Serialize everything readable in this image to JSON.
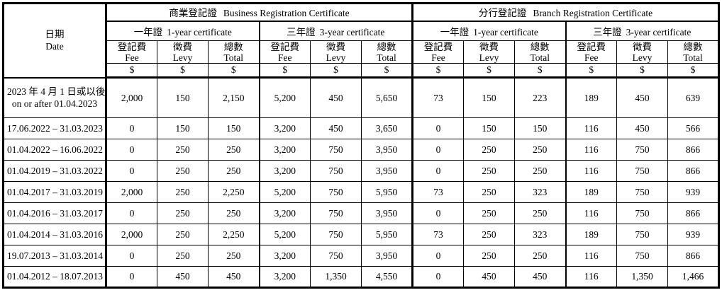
{
  "table": {
    "date_header": {
      "zh": "日期",
      "en": "Date"
    },
    "sections": [
      {
        "zh": "商業登記證",
        "en": "Business Registration Certificate"
      },
      {
        "zh": "分行登記證",
        "en": "Branch Registration Certificate"
      }
    ],
    "groups": [
      {
        "zh": "一年證",
        "en": "1-year certificate"
      },
      {
        "zh": "三年證",
        "en": "3-year certificate"
      }
    ],
    "columns": [
      {
        "zh": "登記費",
        "en": "Fee"
      },
      {
        "zh": "徵費",
        "en": "Levy"
      },
      {
        "zh": "總數",
        "en": "Total"
      }
    ],
    "currency": "$",
    "rows": [
      {
        "date_lines": [
          "2023 年 4 月 1 日或以後",
          "on or after 01.04.2023"
        ],
        "values": [
          "2,000",
          "150",
          "2,150",
          "5,200",
          "450",
          "5,650",
          "73",
          "150",
          "223",
          "189",
          "450",
          "639"
        ]
      },
      {
        "date_lines": [
          "17.06.2022 – 31.03.2023"
        ],
        "values": [
          "0",
          "150",
          "150",
          "3,200",
          "450",
          "3,650",
          "0",
          "150",
          "150",
          "116",
          "450",
          "566"
        ]
      },
      {
        "date_lines": [
          "01.04.2022 – 16.06.2022"
        ],
        "values": [
          "0",
          "250",
          "250",
          "3,200",
          "750",
          "3,950",
          "0",
          "250",
          "250",
          "116",
          "750",
          "866"
        ]
      },
      {
        "date_lines": [
          "01.04.2019 – 31.03.2022"
        ],
        "values": [
          "0",
          "250",
          "250",
          "3,200",
          "750",
          "3,950",
          "0",
          "250",
          "250",
          "116",
          "750",
          "866"
        ]
      },
      {
        "date_lines": [
          "01.04.2017 – 31.03.2019"
        ],
        "values": [
          "2,000",
          "250",
          "2,250",
          "5,200",
          "750",
          "5,950",
          "73",
          "250",
          "323",
          "189",
          "750",
          "939"
        ]
      },
      {
        "date_lines": [
          "01.04.2016 – 31.03.2017"
        ],
        "values": [
          "0",
          "250",
          "250",
          "3,200",
          "750",
          "3,950",
          "0",
          "250",
          "250",
          "116",
          "750",
          "866"
        ]
      },
      {
        "date_lines": [
          "01.04.2014 – 31.03.2016"
        ],
        "values": [
          "2,000",
          "250",
          "2,250",
          "5,200",
          "750",
          "5,950",
          "73",
          "250",
          "323",
          "189",
          "750",
          "939"
        ]
      },
      {
        "date_lines": [
          "19.07.2013 – 31.03.2014"
        ],
        "values": [
          "0",
          "250",
          "250",
          "3,200",
          "750",
          "3,950",
          "0",
          "250",
          "250",
          "116",
          "750",
          "866"
        ]
      },
      {
        "date_lines": [
          "01.04.2012 – 18.07.2013"
        ],
        "values": [
          "0",
          "450",
          "450",
          "3,200",
          "1,350",
          "4,550",
          "0",
          "450",
          "450",
          "116",
          "1,350",
          "1,466"
        ]
      }
    ]
  }
}
